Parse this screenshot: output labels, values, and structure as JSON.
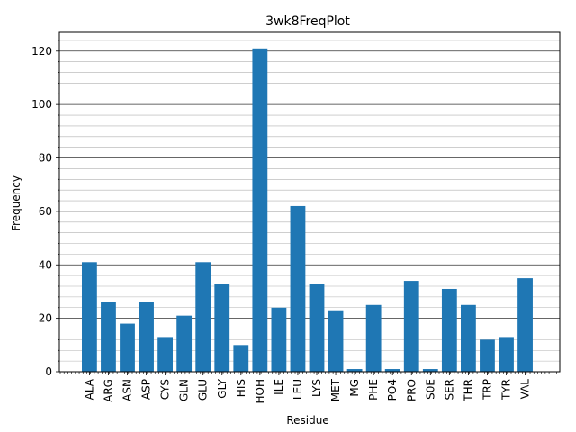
{
  "chart_data": {
    "type": "bar",
    "title": "3wk8FreqPlot",
    "xlabel": "Residue",
    "ylabel": "Frequency",
    "categories": [
      "ALA",
      "ARG",
      "ASN",
      "ASP",
      "CYS",
      "GLN",
      "GLU",
      "GLY",
      "HIS",
      "HOH",
      "ILE",
      "LEU",
      "LYS",
      "MET",
      "MG",
      "PHE",
      "PO4",
      "PRO",
      "S0E",
      "SER",
      "THR",
      "TRP",
      "TYR",
      "VAL"
    ],
    "values": [
      41,
      26,
      18,
      26,
      13,
      21,
      41,
      33,
      10,
      121,
      24,
      62,
      33,
      23,
      1,
      25,
      1,
      34,
      1,
      31,
      25,
      12,
      13,
      35
    ],
    "ylim": [
      0,
      127
    ],
    "yticks": [
      0,
      20,
      40,
      60,
      80,
      100,
      120
    ],
    "grid": "major and minor, horizontal",
    "bar_color": "#1f77b4"
  }
}
